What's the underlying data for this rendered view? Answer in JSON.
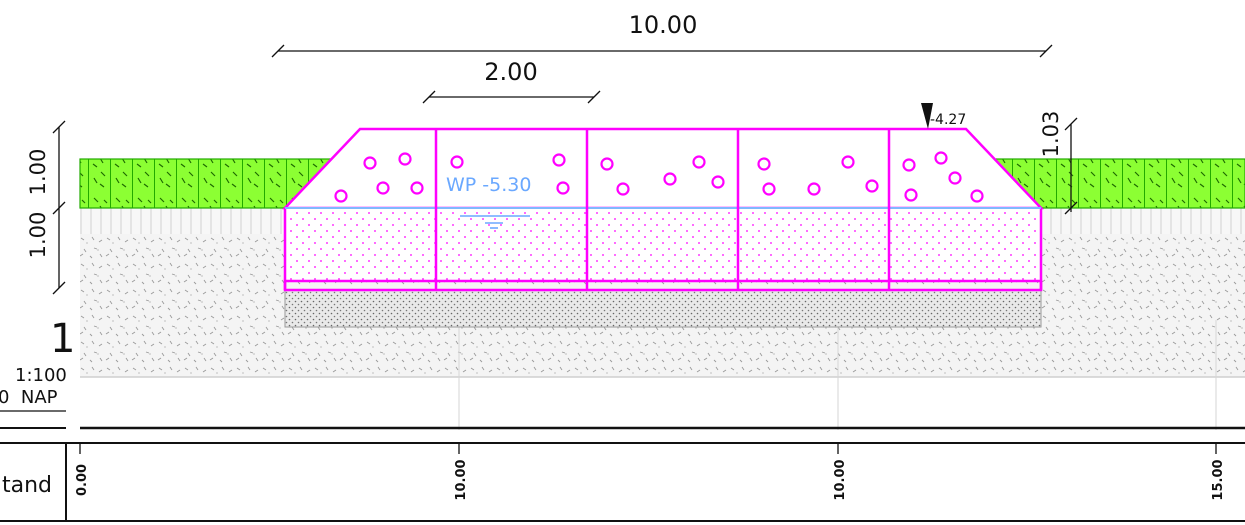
{
  "drawing": {
    "dims": {
      "overall_width": "10.00",
      "inner_width": "2.00",
      "top_layer_height": "1.00",
      "second_layer_height": "1.00",
      "right_height": "1.03"
    },
    "elevation_marker": "-4.27",
    "water_level_label": "WP -5.30",
    "scale_number": "1",
    "scale_text": "1:100",
    "datum_text": "0  NAP",
    "bottom_row_label": "tand",
    "stations": [
      "0.00",
      "10.00",
      "10.00",
      "15.00"
    ]
  },
  "colors": {
    "accent": "#ff00ff",
    "grass_fill": "#8cff33",
    "grass_stroke": "#22aa00",
    "water_line": "#7fb8ff",
    "water_text": "#6aa8ff",
    "line": "#111111"
  }
}
